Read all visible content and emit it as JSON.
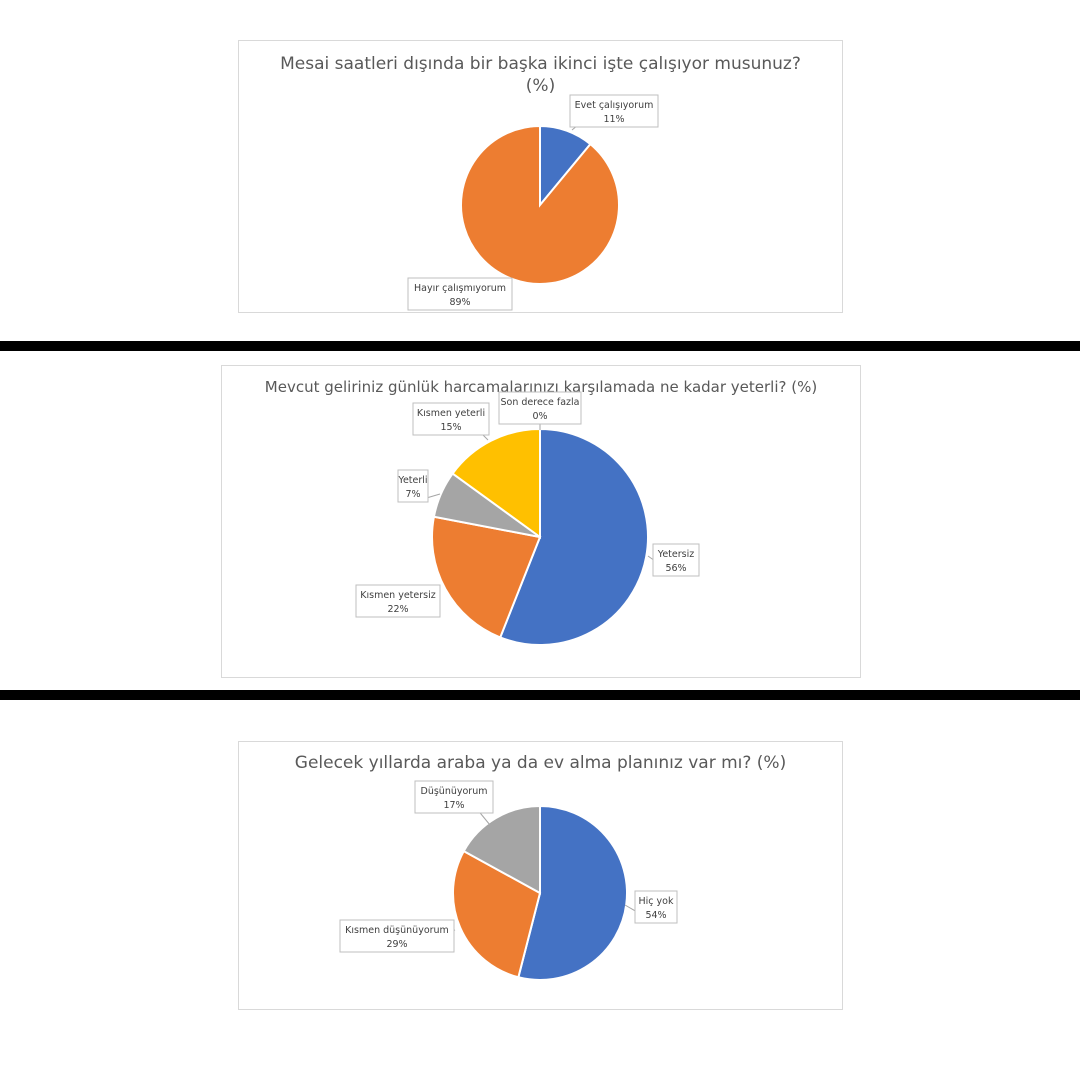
{
  "colors": {
    "blue": "#4472c4",
    "orange": "#ed7d31",
    "gray": "#a5a5a5",
    "yellow": "#ffc000",
    "separator": "#000000",
    "border": "#d9d9d9"
  },
  "chart_data": [
    {
      "type": "pie",
      "title": "Mesai saatleri dışında bir başka ikinci işte çalışıyor musunuz?",
      "title_line2": "(%)",
      "slices": [
        {
          "label": "Evet çalışıyorum",
          "value": 11,
          "value_label": "11%",
          "color": "#4472c4"
        },
        {
          "label": "Hayır çalışmıyorum",
          "value": 89,
          "value_label": "89%",
          "color": "#ed7d31"
        }
      ]
    },
    {
      "type": "pie",
      "title": "Mevcut geliriniz günlük harcamalarınızı karşılamada ne kadar yeterli? (%)",
      "slices": [
        {
          "label": "Yetersiz",
          "value": 56,
          "value_label": "56%",
          "color": "#4472c4"
        },
        {
          "label": "Kısmen yetersiz",
          "value": 22,
          "value_label": "22%",
          "color": "#ed7d31"
        },
        {
          "label": "Yeterli",
          "value": 7,
          "value_label": "7%",
          "color": "#a5a5a5"
        },
        {
          "label": "Kısmen yeterli",
          "value": 15,
          "value_label": "15%",
          "color": "#ffc000"
        },
        {
          "label": "Son derece fazla",
          "value": 0,
          "value_label": "0%",
          "color": "#5b9bd5"
        }
      ]
    },
    {
      "type": "pie",
      "title": "Gelecek yıllarda araba ya da ev alma planınız var mı? (%)",
      "slices": [
        {
          "label": "Hiç yok",
          "value": 54,
          "value_label": "54%",
          "color": "#4472c4"
        },
        {
          "label": "Kısmen düşünüyorum",
          "value": 29,
          "value_label": "29%",
          "color": "#ed7d31"
        },
        {
          "label": "Düşünüyorum",
          "value": 17,
          "value_label": "17%",
          "color": "#a5a5a5"
        }
      ]
    }
  ]
}
